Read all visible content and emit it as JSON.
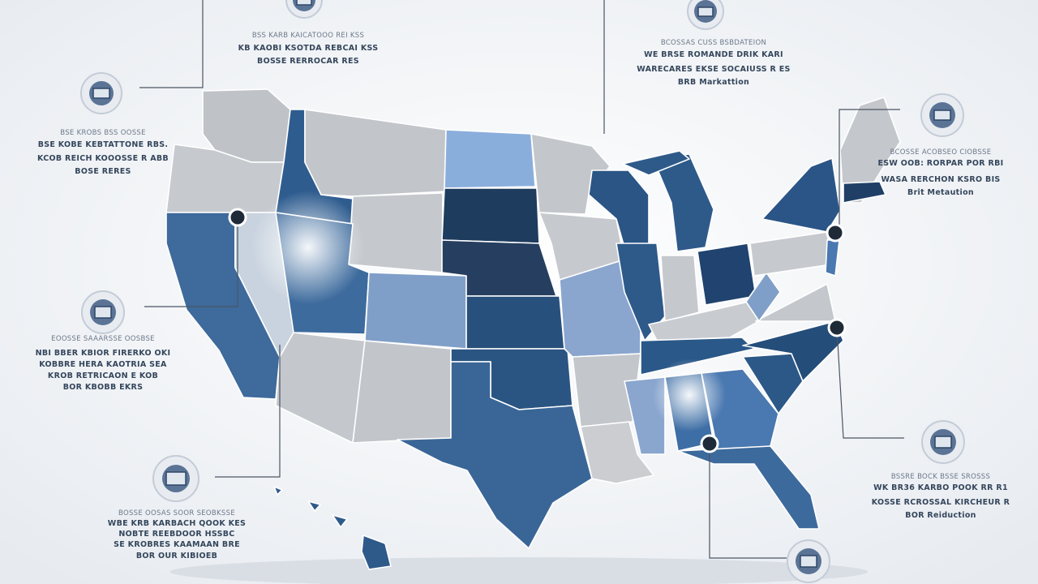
{
  "callouts": [
    {
      "lines": [
        "BSS KARB KAICATOOO REI KSS",
        "KB KAOBI KSOTDA REBCAI KSS",
        "BOSSE RERROCAR RES"
      ]
    },
    {
      "lines": [
        "BCOSSAS CUSS BSBDATEION",
        "WE BRSE ROMANDE DRIK KARI",
        "WARECARES EKSE SOCAIUSS R ES",
        "BRB Markattion"
      ]
    },
    {
      "lines": [
        "BSE KROBS BSS OOSSE",
        "BSE KOBE KEBTATTONE RBS.",
        "KCOB REICH KOOOSSE R ABB",
        "BOSE RERES"
      ]
    },
    {
      "lines": [
        "BCOSSE ACOBSEO CIOBSSE",
        "ESW OOB: RORPAR POR RBI",
        "WASA RERCHON KSRO BIS",
        "Brit Metaution"
      ]
    },
    {
      "lines": [
        "EOOSSE SAAARSSE OOSBSE",
        "NBI BBER KBIOR FIRERKO OKI",
        "KOBBRE HERA KAOTRIA SEA",
        "KROB RETRICAON E KOB",
        "BOR KBOBB EKRS"
      ]
    },
    {
      "lines": [
        "BOSSE OOSAS SOOR SEOBKSSE",
        "WBE KRB KARBACH QOOK KES",
        "NOBTE REEBDOOR HSSBC",
        "SE KROBRES KAAMAAN BRE",
        "BOR OUR KIBIOEB"
      ]
    },
    {
      "lines": [
        "BSSRE BOCK BSSE SROSSS",
        "WK BR36 KARBO POOK RR R1",
        "KOSSE RCROSSAL KIRCHEUR R",
        "BOR Reiduction"
      ]
    }
  ]
}
